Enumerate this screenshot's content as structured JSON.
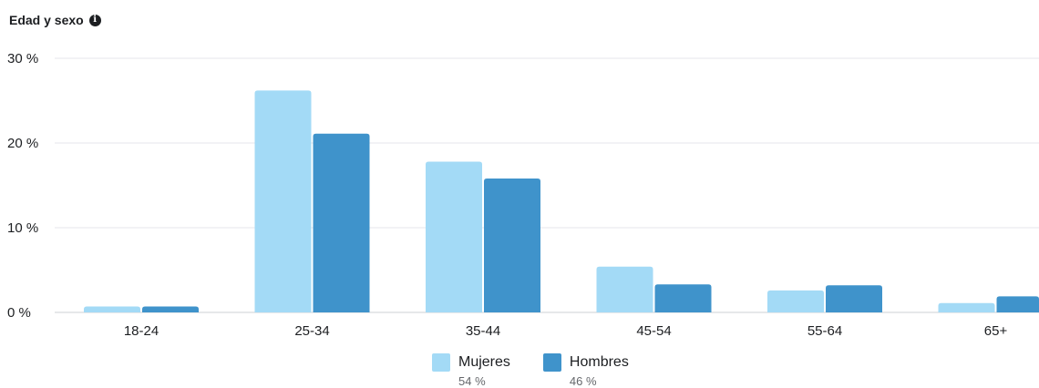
{
  "header": {
    "title": "Edad y sexo",
    "info_icon": "info-circle-icon"
  },
  "colors": {
    "mujeres": "#a3daf6",
    "hombres": "#3f93cb",
    "grid": "#e4e6eb",
    "baseline": "#ccd0d5"
  },
  "legend": [
    {
      "name": "Mujeres",
      "value": "54 %"
    },
    {
      "name": "Hombres",
      "value": "46 %"
    }
  ],
  "chart_data": {
    "type": "bar",
    "categories": [
      "18-24",
      "25-34",
      "35-44",
      "45-54",
      "55-64",
      "65+"
    ],
    "series": [
      {
        "name": "Mujeres",
        "values": [
          0.7,
          26.2,
          17.8,
          5.4,
          2.6,
          1.1
        ]
      },
      {
        "name": "Hombres",
        "values": [
          0.7,
          21.1,
          15.8,
          3.3,
          3.2,
          1.9
        ]
      }
    ],
    "ylim": [
      0,
      30
    ],
    "yticks": [
      0,
      10,
      20,
      30
    ],
    "ytick_labels": [
      "0 %",
      "10 %",
      "20 %",
      "30 %"
    ],
    "grid": true,
    "legend_position": "bottom-center"
  }
}
